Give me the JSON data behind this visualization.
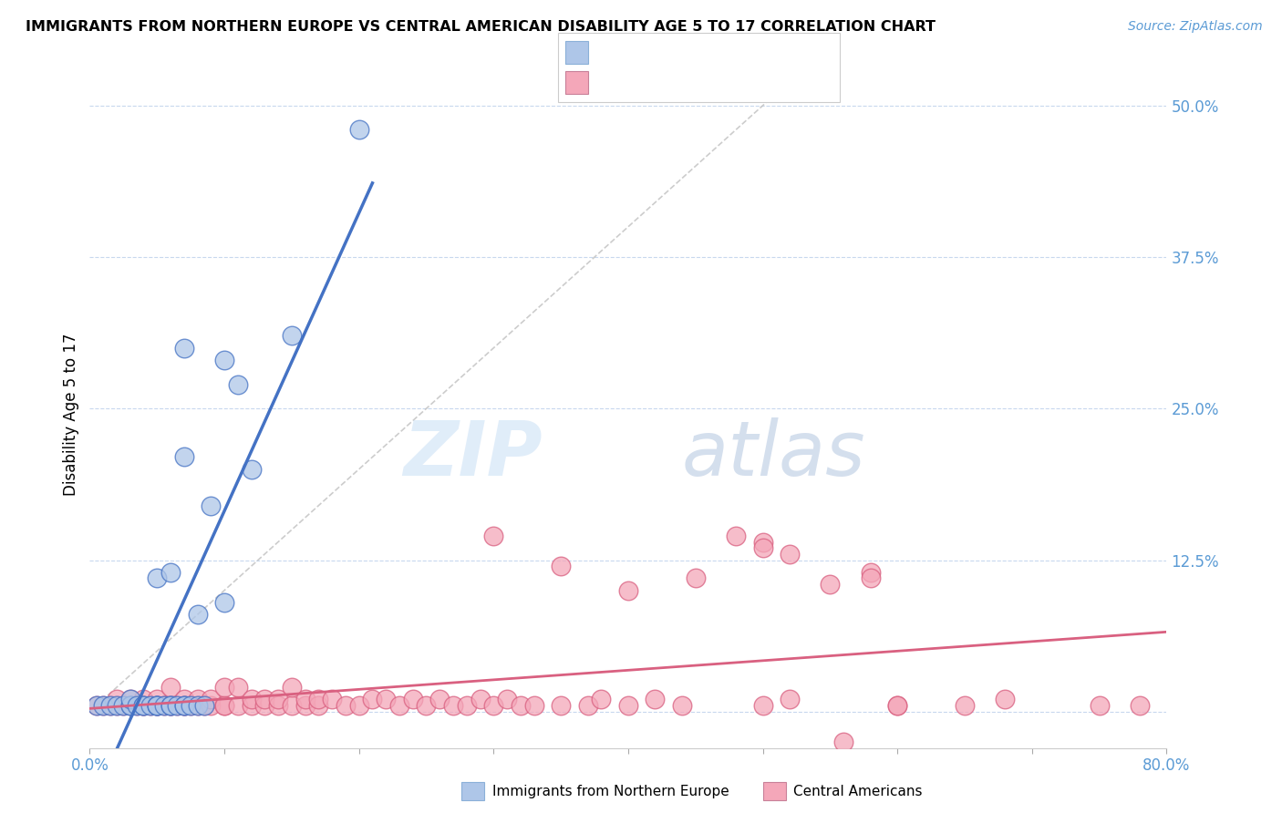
{
  "title": "IMMIGRANTS FROM NORTHERN EUROPE VS CENTRAL AMERICAN DISABILITY AGE 5 TO 17 CORRELATION CHART",
  "source": "Source: ZipAtlas.com",
  "ylabel": "Disability Age 5 to 17",
  "xlim": [
    0.0,
    0.8
  ],
  "ylim": [
    -0.03,
    0.52
  ],
  "xticks": [
    0.0,
    0.1,
    0.2,
    0.3,
    0.4,
    0.5,
    0.6,
    0.7,
    0.8
  ],
  "xticklabels": [
    "0.0%",
    "",
    "",
    "",
    "",
    "",
    "",
    "",
    "80.0%"
  ],
  "ytick_positions": [
    0.0,
    0.125,
    0.25,
    0.375,
    0.5
  ],
  "ytick_labels": [
    "",
    "12.5%",
    "25.0%",
    "37.5%",
    "50.0%"
  ],
  "color_blue": "#aec6e8",
  "color_pink": "#f4a7b9",
  "color_line_blue": "#4472c4",
  "color_line_pink": "#d96080",
  "color_line_diagonal": "#c0c0c0",
  "watermark_zip": "ZIP",
  "watermark_atlas": "atlas",
  "blue_scatter_x": [
    0.005,
    0.01,
    0.015,
    0.02,
    0.025,
    0.03,
    0.03,
    0.03,
    0.035,
    0.04,
    0.04,
    0.045,
    0.05,
    0.05,
    0.05,
    0.05,
    0.055,
    0.06,
    0.06,
    0.06,
    0.065,
    0.07,
    0.07,
    0.07,
    0.07,
    0.075,
    0.08,
    0.08,
    0.085,
    0.09,
    0.1,
    0.1,
    0.11,
    0.12,
    0.15,
    0.2
  ],
  "blue_scatter_y": [
    0.005,
    0.005,
    0.005,
    0.005,
    0.005,
    0.005,
    0.005,
    0.01,
    0.005,
    0.005,
    0.005,
    0.005,
    0.005,
    0.005,
    0.11,
    0.005,
    0.005,
    0.005,
    0.005,
    0.115,
    0.005,
    0.005,
    0.005,
    0.21,
    0.3,
    0.005,
    0.005,
    0.08,
    0.005,
    0.17,
    0.09,
    0.29,
    0.27,
    0.2,
    0.31,
    0.48
  ],
  "pink_scatter_x": [
    0.005,
    0.01,
    0.015,
    0.02,
    0.02,
    0.025,
    0.03,
    0.03,
    0.035,
    0.04,
    0.04,
    0.04,
    0.045,
    0.05,
    0.05,
    0.05,
    0.055,
    0.06,
    0.06,
    0.06,
    0.065,
    0.07,
    0.07,
    0.07,
    0.075,
    0.08,
    0.08,
    0.085,
    0.09,
    0.09,
    0.1,
    0.1,
    0.1,
    0.11,
    0.11,
    0.12,
    0.12,
    0.13,
    0.13,
    0.14,
    0.14,
    0.15,
    0.15,
    0.16,
    0.16,
    0.17,
    0.17,
    0.18,
    0.19,
    0.2,
    0.21,
    0.22,
    0.23,
    0.24,
    0.25,
    0.26,
    0.27,
    0.28,
    0.29,
    0.3,
    0.31,
    0.32,
    0.33,
    0.35,
    0.37,
    0.38,
    0.4,
    0.42,
    0.44,
    0.45,
    0.5,
    0.55,
    0.58,
    0.6,
    0.3,
    0.35,
    0.4,
    0.5,
    0.52,
    0.58,
    0.6,
    0.65,
    0.68,
    0.75,
    0.78,
    0.48,
    0.5,
    0.52,
    0.56
  ],
  "pink_scatter_y": [
    0.005,
    0.005,
    0.005,
    0.005,
    0.01,
    0.005,
    0.005,
    0.01,
    0.005,
    0.005,
    0.005,
    0.01,
    0.005,
    0.005,
    0.005,
    0.01,
    0.005,
    0.005,
    0.005,
    0.02,
    0.005,
    0.005,
    0.005,
    0.01,
    0.005,
    0.005,
    0.01,
    0.005,
    0.005,
    0.01,
    0.005,
    0.005,
    0.02,
    0.005,
    0.02,
    0.005,
    0.01,
    0.005,
    0.01,
    0.005,
    0.01,
    0.005,
    0.02,
    0.005,
    0.01,
    0.005,
    0.01,
    0.01,
    0.005,
    0.005,
    0.01,
    0.01,
    0.005,
    0.01,
    0.005,
    0.01,
    0.005,
    0.005,
    0.01,
    0.005,
    0.01,
    0.005,
    0.005,
    0.005,
    0.005,
    0.01,
    0.005,
    0.01,
    0.005,
    0.11,
    0.005,
    0.105,
    0.115,
    0.005,
    0.145,
    0.12,
    0.1,
    0.14,
    0.13,
    0.11,
    0.005,
    0.005,
    0.01,
    0.005,
    0.005,
    0.145,
    0.135,
    0.01,
    -0.025
  ]
}
